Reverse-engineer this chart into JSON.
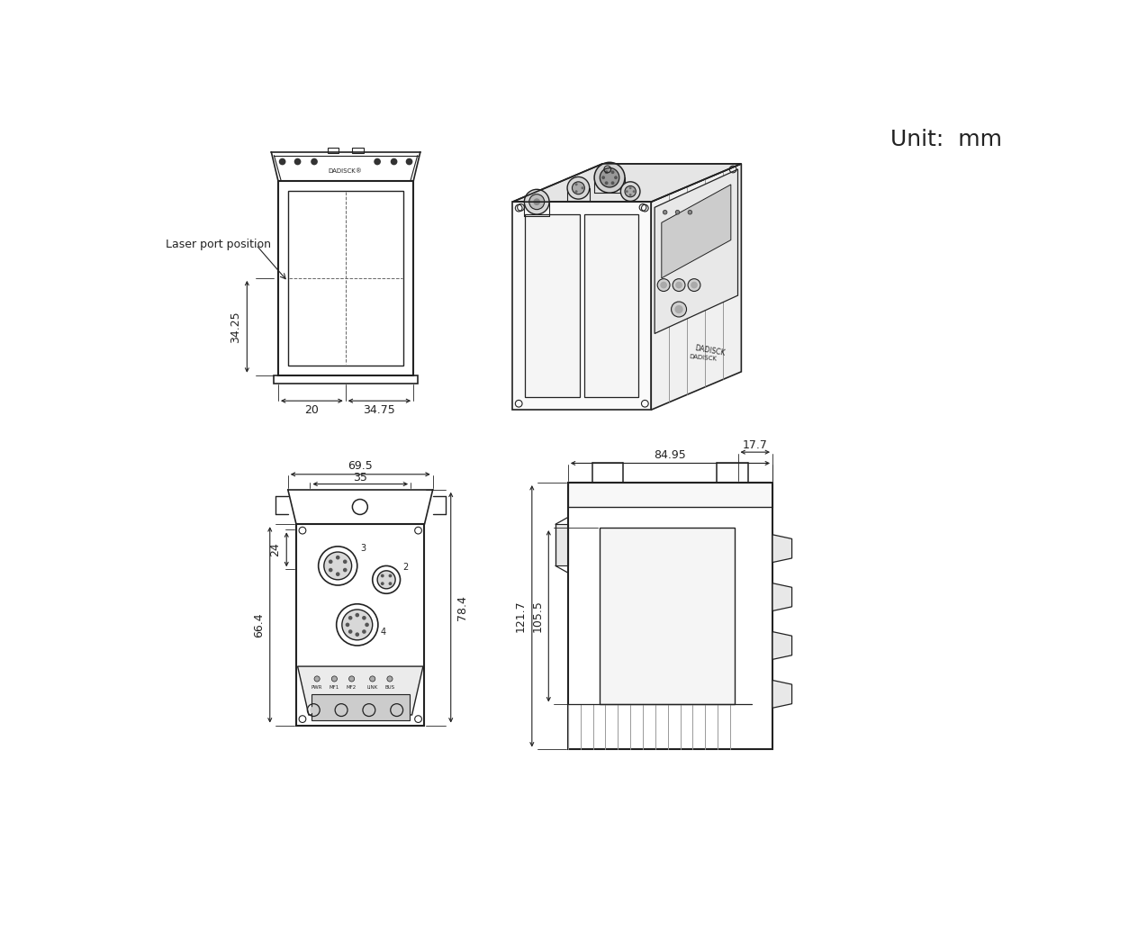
{
  "unit_text": "Unit:  mm",
  "background_color": "#ffffff",
  "line_color": "#222222",
  "dim_color": "#222222",
  "label_laser_port": "Laser port position",
  "dims": {
    "top_left": {
      "dim_34_25": "34.25",
      "dim_20": "20",
      "dim_34_75": "34.75"
    },
    "bottom_left": {
      "dim_69_5": "69.5",
      "dim_35": "35",
      "dim_24": "24",
      "dim_66_4": "66.4",
      "dim_78_4": "78.4"
    },
    "bottom_right": {
      "dim_84_95": "84.95",
      "dim_17_7": "17.7",
      "dim_121_7": "121.7",
      "dim_105_5": "105.5"
    }
  }
}
